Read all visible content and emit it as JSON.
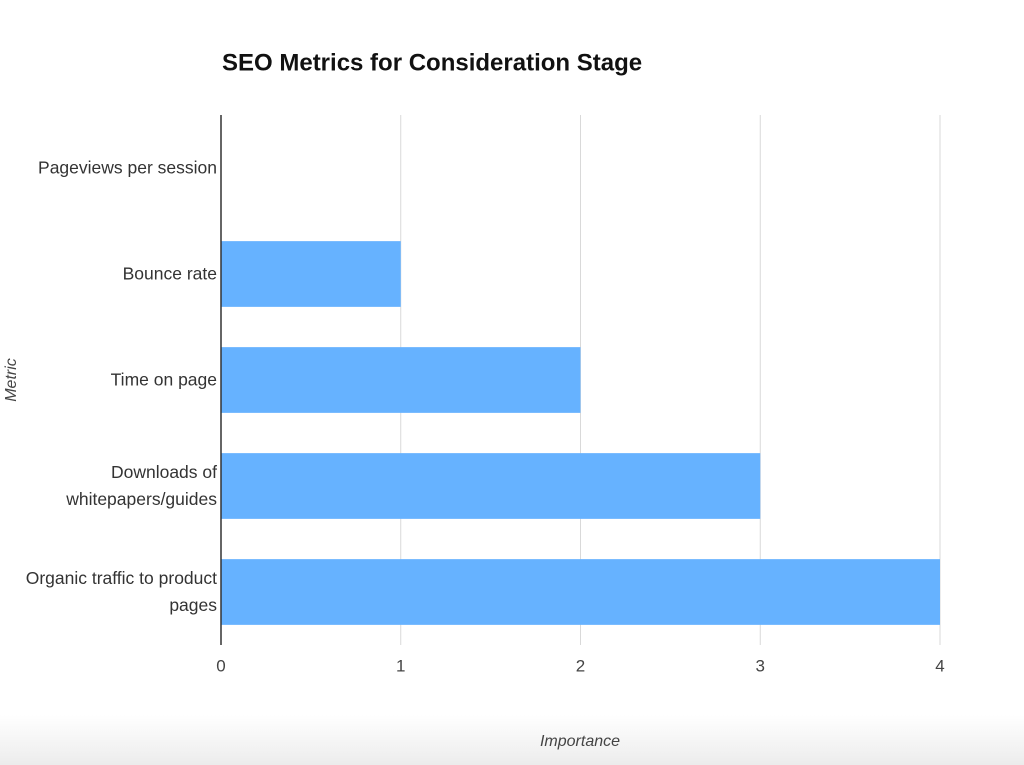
{
  "chart_data": {
    "type": "bar",
    "orientation": "horizontal",
    "title": "SEO Metrics for Consideration Stage",
    "x_label": "Importance",
    "y_label": "Metric",
    "categories": [
      "Pageviews per session",
      "Bounce rate",
      "Time on page",
      "Downloads of whitepapers/guides",
      "Organic traffic to product pages"
    ],
    "values": [
      0,
      1,
      2,
      3,
      4
    ],
    "color": "#66b2ff",
    "xlim": [
      0,
      4
    ],
    "xticks": [
      0,
      1,
      2,
      3,
      4
    ],
    "grid": true
  }
}
